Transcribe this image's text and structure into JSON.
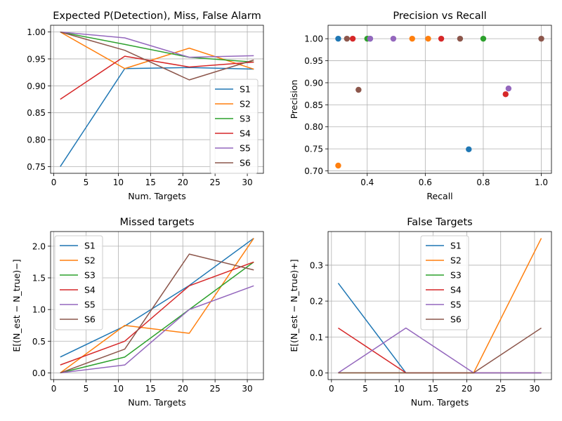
{
  "colors": [
    "#1f77b4",
    "#ff7f0e",
    "#2ca02c",
    "#d62728",
    "#9467bd",
    "#8c564b"
  ],
  "chart_data": [
    {
      "type": "line",
      "title": "Expected P(Detection), Miss, False Alarm",
      "xlabel": "Num. Targets",
      "ylabel": "",
      "xlim": [
        -0.5,
        32.5
      ],
      "ylim": [
        0.7375,
        1.0125
      ],
      "xticks": [
        0,
        5,
        10,
        15,
        20,
        25,
        30
      ],
      "yticks": [
        0.75,
        0.8,
        0.85,
        0.9,
        0.95,
        1.0
      ],
      "ytick_labels": [
        "0.75",
        "0.80",
        "0.85",
        "0.90",
        "0.95",
        "1.00"
      ],
      "grid": true,
      "legend": "lower-right",
      "x": [
        1,
        11,
        21,
        31
      ],
      "series": [
        {
          "name": "S1",
          "values": [
            0.75,
            0.932,
            0.934,
            0.931
          ]
        },
        {
          "name": "S2",
          "values": [
            1.0,
            0.932,
            0.97,
            0.931
          ]
        },
        {
          "name": "S3",
          "values": [
            1.0,
            0.977,
            0.953,
            0.944
          ]
        },
        {
          "name": "S4",
          "values": [
            0.875,
            0.955,
            0.935,
            0.944
          ]
        },
        {
          "name": "S5",
          "values": [
            1.0,
            0.989,
            0.953,
            0.956
          ]
        },
        {
          "name": "S6",
          "values": [
            1.0,
            0.966,
            0.911,
            0.948
          ]
        }
      ]
    },
    {
      "type": "scatter",
      "title": "Precision vs Recall",
      "xlabel": "Recall",
      "ylabel": "Precision",
      "xlim": [
        0.265,
        1.035
      ],
      "ylim": [
        0.6945,
        1.0305
      ],
      "xticks": [
        0.4,
        0.6,
        0.8,
        1.0
      ],
      "xtick_labels": [
        "0.4",
        "0.6",
        "0.8",
        "1.0"
      ],
      "yticks": [
        0.7,
        0.75,
        0.8,
        0.85,
        0.9,
        0.95,
        1.0
      ],
      "ytick_labels": [
        "0.70",
        "0.75",
        "0.80",
        "0.85",
        "0.90",
        "0.95",
        "1.00"
      ],
      "grid": true,
      "series": [
        {
          "name": "S1",
          "points": [
            [
              0.3,
              1.0
            ],
            [
              0.75,
              0.749
            ],
            [
              0.41,
              1.0
            ]
          ]
        },
        {
          "name": "S2",
          "points": [
            [
              0.3,
              0.712
            ],
            [
              0.555,
              1.0
            ],
            [
              0.61,
              1.0
            ]
          ]
        },
        {
          "name": "S3",
          "points": [
            [
              0.8,
              1.0
            ],
            [
              0.4,
              1.0
            ]
          ]
        },
        {
          "name": "S4",
          "points": [
            [
              0.35,
              1.0
            ],
            [
              0.655,
              1.0
            ],
            [
              0.877,
              0.874
            ]
          ]
        },
        {
          "name": "S5",
          "points": [
            [
              0.41,
              1.0
            ],
            [
              0.49,
              1.0
            ],
            [
              0.887,
              0.887
            ]
          ]
        },
        {
          "name": "S6",
          "points": [
            [
              0.33,
              1.0
            ],
            [
              0.37,
              0.884
            ],
            [
              0.72,
              1.0
            ],
            [
              1.0,
              1.0
            ]
          ]
        }
      ]
    },
    {
      "type": "line",
      "title": "Missed targets",
      "xlabel": "Num. Targets",
      "ylabel": "E[(N_est − N_true)−]",
      "xlim": [
        -0.5,
        32.5
      ],
      "ylim": [
        -0.106,
        2.231
      ],
      "xticks": [
        0,
        5,
        10,
        15,
        20,
        25,
        30
      ],
      "yticks": [
        0.0,
        0.5,
        1.0,
        1.5,
        2.0
      ],
      "ytick_labels": [
        "0.0",
        "0.5",
        "1.0",
        "1.5",
        "2.0"
      ],
      "grid": true,
      "legend": "upper-left",
      "x": [
        1,
        11,
        21,
        31
      ],
      "series": [
        {
          "name": "S1",
          "values": [
            0.25,
            0.74,
            1.38,
            2.125
          ]
        },
        {
          "name": "S2",
          "values": [
            0.0,
            0.75,
            0.625,
            2.125
          ]
        },
        {
          "name": "S3",
          "values": [
            0.0,
            0.25,
            1.0,
            1.75
          ]
        },
        {
          "name": "S4",
          "values": [
            0.125,
            0.5,
            1.375,
            1.75
          ]
        },
        {
          "name": "S5",
          "values": [
            0.0,
            0.125,
            1.0,
            1.375
          ]
        },
        {
          "name": "S6",
          "values": [
            0.0,
            0.375,
            1.875,
            1.625
          ]
        }
      ]
    },
    {
      "type": "line",
      "title": "False Targets",
      "xlabel": "Num. Targets",
      "ylabel": "E[(N_est − N_true)+]",
      "xlim": [
        -0.5,
        32.5
      ],
      "ylim": [
        -0.01875,
        0.39375
      ],
      "xticks": [
        0,
        5,
        10,
        15,
        20,
        25,
        30
      ],
      "yticks": [
        0.0,
        0.1,
        0.2,
        0.3
      ],
      "ytick_labels": [
        "0.0",
        "0.1",
        "0.2",
        "0.3"
      ],
      "grid": true,
      "legend": "upper-center",
      "x": [
        1,
        11,
        21,
        31
      ],
      "series": [
        {
          "name": "S1",
          "values": [
            0.25,
            0.0,
            0.0,
            0.0
          ]
        },
        {
          "name": "S2",
          "values": [
            0.0,
            0.0,
            0.0,
            0.375
          ]
        },
        {
          "name": "S3",
          "values": [
            0.0,
            0.0,
            0.0,
            0.0
          ]
        },
        {
          "name": "S4",
          "values": [
            0.125,
            0.0,
            0.0,
            0.0
          ]
        },
        {
          "name": "S5",
          "values": [
            0.0,
            0.125,
            0.0,
            0.0
          ]
        },
        {
          "name": "S6",
          "values": [
            0.0,
            0.0,
            0.0,
            0.125
          ]
        }
      ]
    }
  ]
}
